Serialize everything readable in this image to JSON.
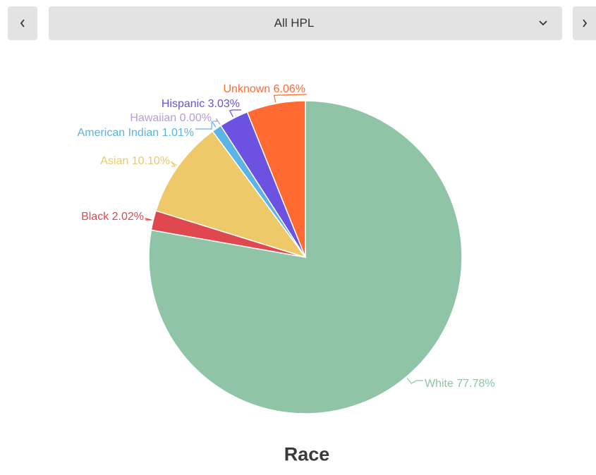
{
  "selector": {
    "value": "All HPL",
    "prev_icon": "chevron-left-icon",
    "next_icon": "chevron-right-icon",
    "dropdown_icon": "chevron-down-icon"
  },
  "chart_data": {
    "type": "pie",
    "title": "Race",
    "slices": [
      {
        "label": "White 77.78%",
        "name": "White",
        "value": 77.78,
        "color": "#8fc4a7"
      },
      {
        "label": "Black 2.02%",
        "name": "Black",
        "value": 2.02,
        "color": "#e0484f"
      },
      {
        "label": "Asian 10.10%",
        "name": "Asian",
        "value": 10.1,
        "color": "#edc96a"
      },
      {
        "label": "American Indian 1.01%",
        "name": "American Indian",
        "value": 1.01,
        "color": "#5ab4e5"
      },
      {
        "label": "Hawaiian 0.00%",
        "name": "Hawaiian",
        "value": 0.0,
        "color": "#b99cd8"
      },
      {
        "label": "Hispanic 3.03%",
        "name": "Hispanic",
        "value": 3.03,
        "color": "#6b52e0"
      },
      {
        "label": "Unknown 6.06%",
        "name": "Unknown",
        "value": 6.06,
        "color": "#ff6a33"
      }
    ]
  }
}
